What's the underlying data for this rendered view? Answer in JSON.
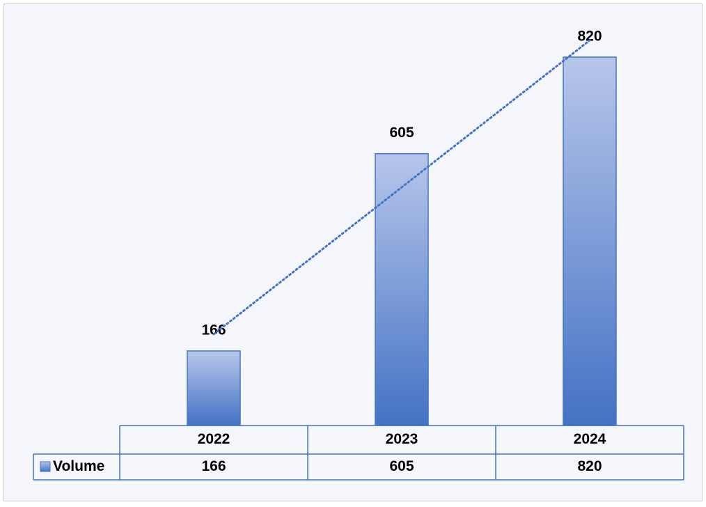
{
  "chart_data": {
    "type": "bar",
    "categories": [
      "2022",
      "2023",
      "2024"
    ],
    "series": [
      {
        "name": "Volume",
        "color": "#4472c4",
        "values": [
          166,
          605,
          820
        ]
      }
    ],
    "trendline": "linear",
    "data_table": true
  }
}
